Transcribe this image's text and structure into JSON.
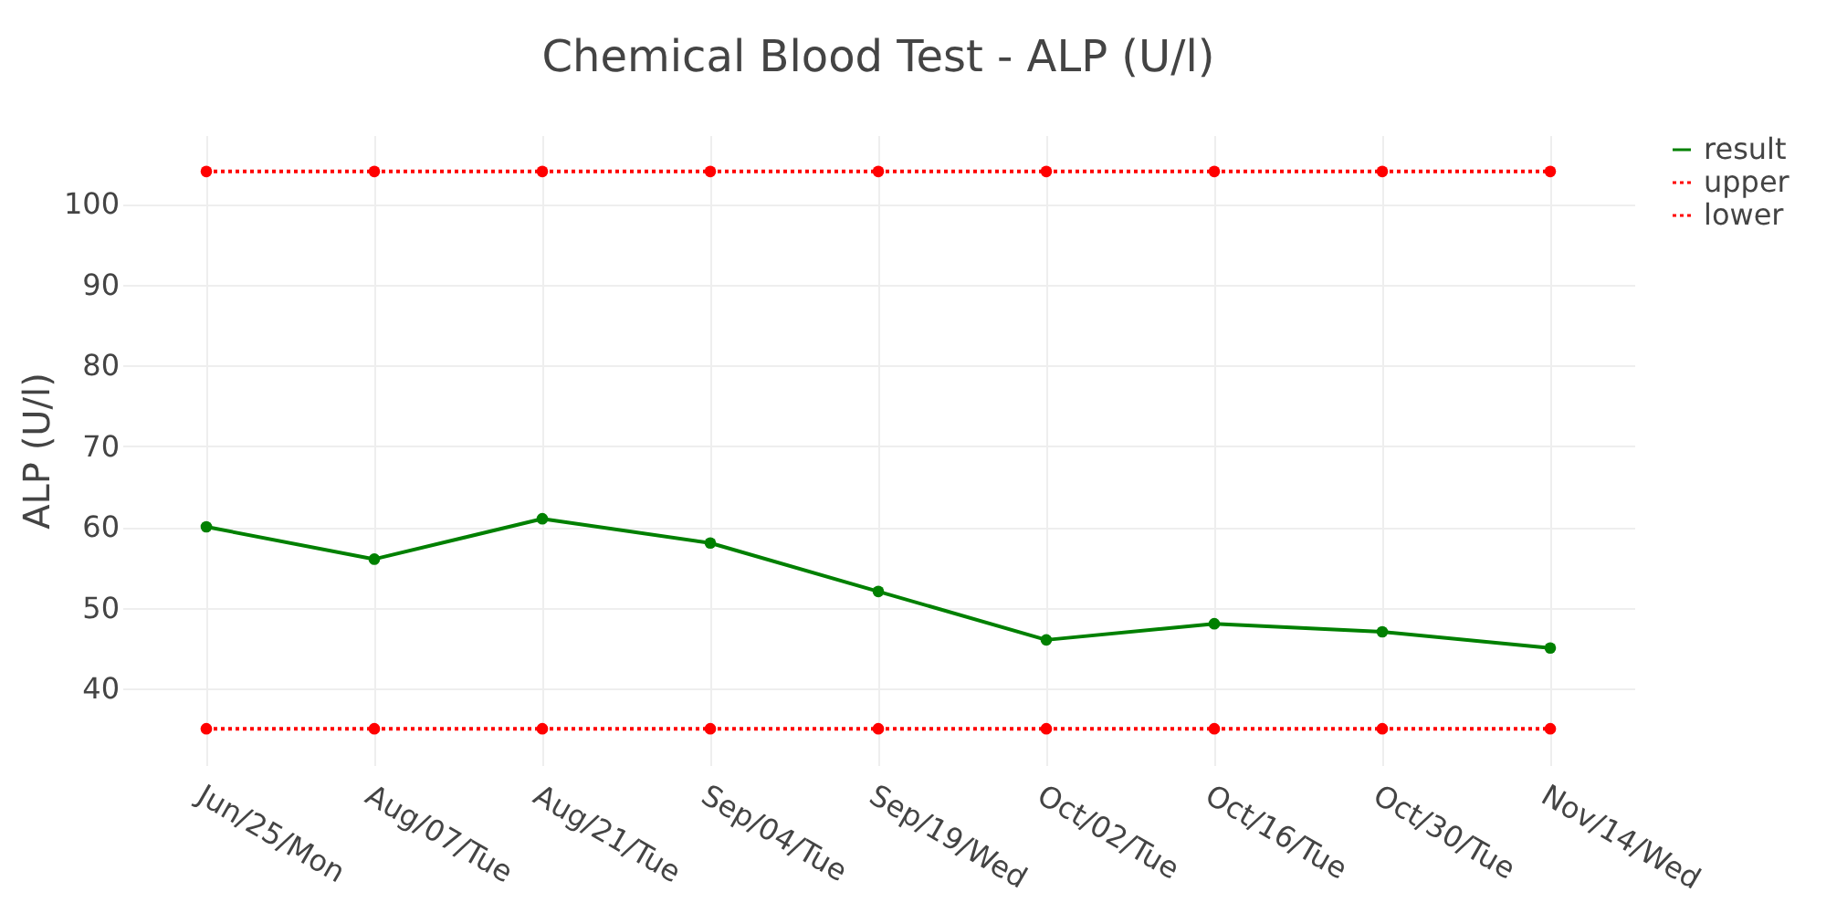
{
  "chart_data": {
    "type": "line",
    "title": "Chemical Blood Test - ALP (U/l)",
    "ylabel": "ALP (U/l)",
    "categories": [
      "Jun/25/Mon",
      "Aug/07/Tue",
      "Aug/21/Tue",
      "Sep/04/Tue",
      "Sep/19/Wed",
      "Oct/02/Tue",
      "Oct/16/Tue",
      "Oct/30/Tue",
      "Nov/14/Wed"
    ],
    "series": [
      {
        "name": "result",
        "color": "#008000",
        "line_style": "solid",
        "values": [
          60,
          56,
          61,
          58,
          52,
          46,
          48,
          47,
          45
        ]
      },
      {
        "name": "upper",
        "color": "#ff0000",
        "line_style": "dotted",
        "values": [
          104,
          104,
          104,
          104,
          104,
          104,
          104,
          104,
          104
        ]
      },
      {
        "name": "lower",
        "color": "#ff0000",
        "line_style": "dotted",
        "values": [
          35,
          35,
          35,
          35,
          35,
          35,
          35,
          35,
          35
        ]
      }
    ],
    "ylim": [
      30.5,
      108.5
    ],
    "yticks": [
      40,
      50,
      60,
      70,
      80,
      90,
      100
    ],
    "grid": true,
    "legend": "top right",
    "marker": "circle"
  }
}
